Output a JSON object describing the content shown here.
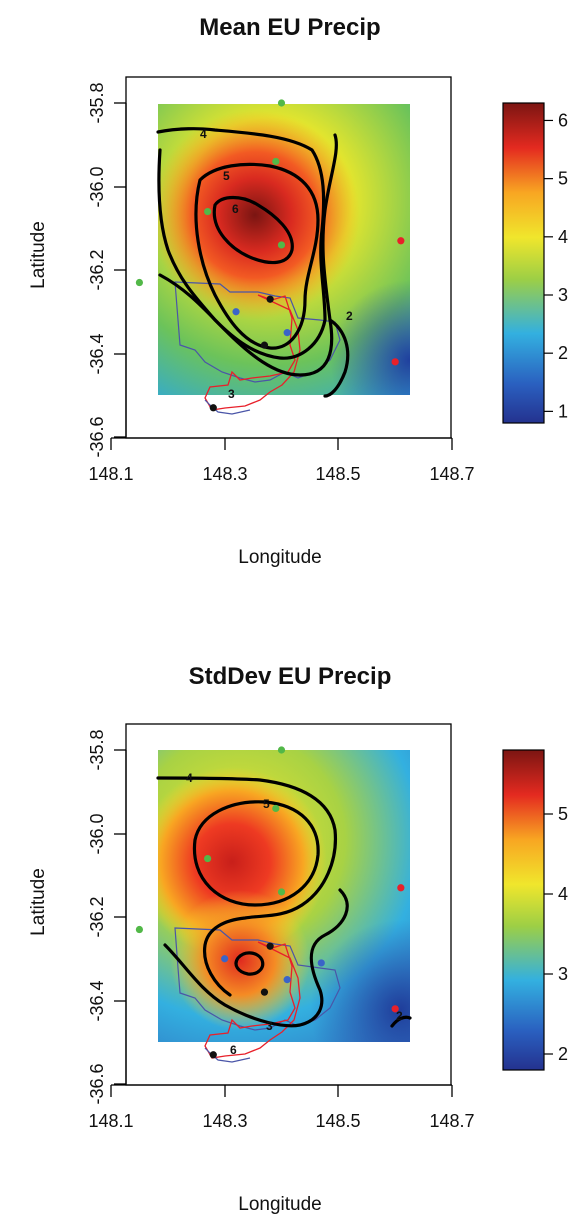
{
  "chart_data": [
    {
      "type": "heatmap",
      "title": "Mean EU Precip",
      "xlabel": "Longitude",
      "ylabel": "Latitude",
      "xlim": [
        148.1,
        148.7
      ],
      "ylim": [
        -36.6,
        -35.8
      ],
      "x_ticks": [
        "148.1",
        "148.3",
        "148.5",
        "148.7"
      ],
      "y_ticks": [
        "-36.6",
        "-36.4",
        "-36.2",
        "-36.0",
        "-35.8"
      ],
      "colorbar": {
        "range": [
          0.8,
          6.3
        ],
        "ticks": [
          "1",
          "2",
          "3",
          "4",
          "5",
          "6"
        ]
      },
      "contour_levels": [
        {
          "level": "2",
          "label_at": [
            148.42,
            -36.34
          ]
        },
        {
          "level": "3",
          "label_at": [
            148.26,
            -36.52
          ]
        },
        {
          "level": "4",
          "label_at": [
            148.18,
            -35.92
          ]
        },
        {
          "level": "5",
          "label_at": [
            148.24,
            -36.02
          ]
        },
        {
          "level": "6",
          "label_at": [
            148.26,
            -36.05
          ]
        }
      ],
      "peak": {
        "x": 148.28,
        "y": -36.12,
        "value": 6.3
      },
      "points": [
        {
          "x": 148.4,
          "y": -35.8,
          "color": "#52b848"
        },
        {
          "x": 148.39,
          "y": -35.94,
          "color": "#52b848"
        },
        {
          "x": 148.27,
          "y": -36.06,
          "color": "#52b848"
        },
        {
          "x": 148.4,
          "y": -36.14,
          "color": "#52b848"
        },
        {
          "x": 148.15,
          "y": -36.23,
          "color": "#52b848"
        },
        {
          "x": 148.61,
          "y": -36.13,
          "color": "#e8202a"
        },
        {
          "x": 148.6,
          "y": -36.42,
          "color": "#e8202a"
        },
        {
          "x": 148.32,
          "y": -36.3,
          "color": "#3a64c8"
        },
        {
          "x": 148.41,
          "y": -36.35,
          "color": "#3a64c8"
        },
        {
          "x": 148.38,
          "y": -36.27,
          "color": "#111111"
        },
        {
          "x": 148.37,
          "y": -36.38,
          "color": "#111111"
        },
        {
          "x": 148.28,
          "y": -36.53,
          "color": "#111111"
        }
      ]
    },
    {
      "type": "heatmap",
      "title": "StdDev EU Precip",
      "xlabel": "Longitude",
      "ylabel": "Latitude",
      "xlim": [
        148.1,
        148.7
      ],
      "ylim": [
        -36.6,
        -35.8
      ],
      "x_ticks": [
        "148.1",
        "148.3",
        "148.5",
        "148.7"
      ],
      "y_ticks": [
        "-36.6",
        "-36.4",
        "-36.2",
        "-36.0",
        "-35.8"
      ],
      "colorbar": {
        "range": [
          1.8,
          5.8
        ],
        "ticks": [
          "2",
          "3",
          "4",
          "5"
        ]
      },
      "contour_levels": [
        {
          "level": "2",
          "label_at": [
            148.6,
            -36.42
          ]
        },
        {
          "level": "3",
          "label_at": [
            148.39,
            -36.45
          ]
        },
        {
          "level": "4",
          "label_at": [
            148.19,
            -35.81
          ]
        },
        {
          "level": "5",
          "label_at": [
            148.37,
            -35.89
          ]
        },
        {
          "level": "6",
          "label_at": [
            148.28,
            -36.53
          ]
        }
      ],
      "peak": {
        "x": 148.27,
        "y": -36.05,
        "value": 5.8
      },
      "points": [
        {
          "x": 148.4,
          "y": -35.8,
          "color": "#52b848"
        },
        {
          "x": 148.39,
          "y": -35.94,
          "color": "#52b848"
        },
        {
          "x": 148.27,
          "y": -36.06,
          "color": "#52b848"
        },
        {
          "x": 148.4,
          "y": -36.14,
          "color": "#52b848"
        },
        {
          "x": 148.15,
          "y": -36.23,
          "color": "#52b848"
        },
        {
          "x": 148.61,
          "y": -36.13,
          "color": "#e8202a"
        },
        {
          "x": 148.6,
          "y": -36.42,
          "color": "#e8202a"
        },
        {
          "x": 148.3,
          "y": -36.3,
          "color": "#3a64c8"
        },
        {
          "x": 148.41,
          "y": -36.35,
          "color": "#3a64c8"
        },
        {
          "x": 148.47,
          "y": -36.31,
          "color": "#3a64c8"
        },
        {
          "x": 148.38,
          "y": -36.27,
          "color": "#111111"
        },
        {
          "x": 148.37,
          "y": -36.38,
          "color": "#111111"
        },
        {
          "x": 148.28,
          "y": -36.53,
          "color": "#111111"
        }
      ]
    }
  ]
}
